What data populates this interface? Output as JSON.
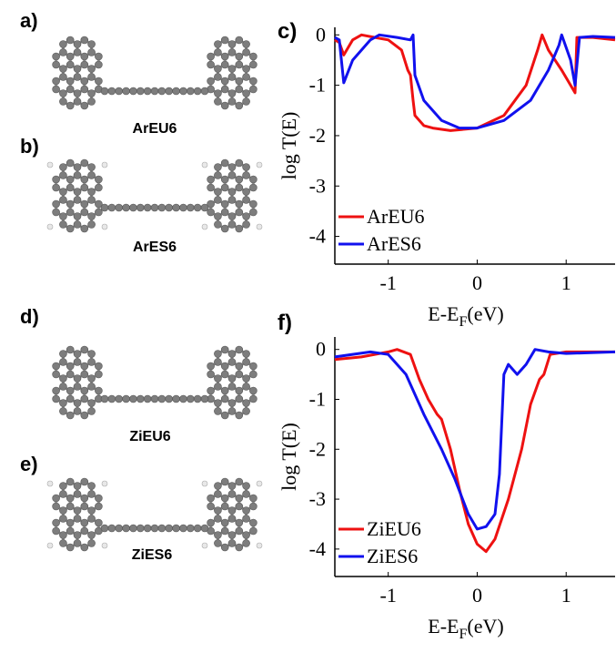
{
  "molecule_panels": [
    {
      "label": "a)",
      "name": "ArEU6"
    },
    {
      "label": "b)",
      "name": "ArES6"
    },
    {
      "label": "d)",
      "name": "ZiEU6"
    },
    {
      "label": "e)",
      "name": "ZiES6"
    }
  ],
  "chart_data": [
    {
      "type": "line",
      "title": "c)",
      "y_label": "log T(E)",
      "x_label": {
        "main": "E-E",
        "sub": "F",
        "unit": "(eV)"
      },
      "xlim": [
        -1.6,
        1.55
      ],
      "ylim": [
        -4.55,
        0.15
      ],
      "xticks": [
        -1,
        0,
        1
      ],
      "yticks": [
        0,
        -1,
        -2,
        -3,
        -4
      ],
      "legend": "lower left",
      "series": [
        {
          "name": "ArEU6",
          "color": "#ee1111",
          "x": [
            -1.6,
            -1.55,
            -1.5,
            -1.4,
            -1.3,
            -1.15,
            -1.0,
            -0.85,
            -0.78,
            -0.75,
            -0.72,
            -0.7,
            -0.6,
            -0.5,
            -0.3,
            0,
            0.3,
            0.55,
            0.68,
            0.73,
            0.8,
            0.95,
            1.1,
            1.12,
            1.3,
            1.55
          ],
          "values": [
            -0.1,
            -0.15,
            -0.4,
            -0.1,
            0,
            -0.05,
            -0.1,
            -0.3,
            -0.7,
            -0.8,
            -1.3,
            -1.6,
            -1.8,
            -1.85,
            -1.9,
            -1.85,
            -1.6,
            -1.0,
            -0.3,
            0,
            -0.3,
            -0.7,
            -1.15,
            -0.05,
            -0.05,
            -0.1
          ]
        },
        {
          "name": "ArES6",
          "color": "#1111ee",
          "x": [
            -1.6,
            -1.55,
            -1.5,
            -1.4,
            -1.2,
            -1.1,
            -0.9,
            -0.75,
            -0.72,
            -0.7,
            -0.6,
            -0.4,
            -0.2,
            0,
            0.3,
            0.6,
            0.8,
            0.92,
            0.95,
            1.05,
            1.1,
            1.15,
            1.3,
            1.55
          ],
          "values": [
            -0.05,
            -0.1,
            -0.95,
            -0.5,
            -0.1,
            0,
            -0.05,
            -0.1,
            0,
            -0.8,
            -1.3,
            -1.7,
            -1.85,
            -1.85,
            -1.7,
            -1.3,
            -0.7,
            -0.2,
            0,
            -0.5,
            -1.0,
            -0.05,
            -0.03,
            -0.05
          ]
        }
      ]
    },
    {
      "type": "line",
      "title": "f)",
      "y_label": "log T(E)",
      "x_label": {
        "main": "E-E",
        "sub": "F",
        "unit": "(eV)"
      },
      "xlim": [
        -1.6,
        1.55
      ],
      "ylim": [
        -4.55,
        0.25
      ],
      "xticks": [
        -1,
        0,
        1
      ],
      "yticks": [
        0,
        -1,
        -2,
        -3,
        -4
      ],
      "legend": "lower left",
      "series": [
        {
          "name": "ZiEU6",
          "color": "#ee1111",
          "x": [
            -1.6,
            -1.3,
            -1.0,
            -0.9,
            -0.75,
            -0.65,
            -0.55,
            -0.45,
            -0.4,
            -0.3,
            -0.2,
            -0.1,
            0,
            0.1,
            0.2,
            0.35,
            0.5,
            0.6,
            0.7,
            0.75,
            0.82,
            1.0,
            1.55
          ],
          "values": [
            -0.2,
            -0.15,
            -0.05,
            0,
            -0.1,
            -0.6,
            -1.0,
            -1.3,
            -1.4,
            -2.0,
            -2.8,
            -3.5,
            -3.9,
            -4.05,
            -3.8,
            -3.0,
            -2.0,
            -1.1,
            -0.6,
            -0.5,
            -0.1,
            -0.05,
            -0.05
          ]
        },
        {
          "name": "ZiES6",
          "color": "#1111ee",
          "x": [
            -1.6,
            -1.2,
            -1.0,
            -0.8,
            -0.6,
            -0.4,
            -0.25,
            -0.1,
            0,
            0.1,
            0.2,
            0.25,
            0.3,
            0.35,
            0.45,
            0.55,
            0.65,
            0.8,
            1.0,
            1.55
          ],
          "values": [
            -0.15,
            -0.05,
            -0.1,
            -0.5,
            -1.3,
            -2.0,
            -2.6,
            -3.3,
            -3.6,
            -3.55,
            -3.3,
            -2.5,
            -0.5,
            -0.3,
            -0.5,
            -0.3,
            0,
            -0.05,
            -0.08,
            -0.05
          ]
        }
      ]
    }
  ]
}
